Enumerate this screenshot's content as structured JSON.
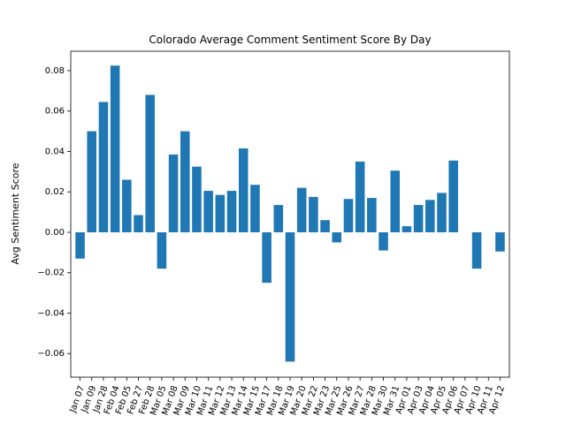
{
  "chart_data": {
    "type": "bar",
    "title": "Colorado Average Comment Sentiment Score By Day",
    "ylabel": "Avg Sentiment Score",
    "categories": [
      "Jan 07",
      "Jan 09",
      "Jan 28",
      "Feb 04",
      "Feb 05",
      "Feb 27",
      "Feb 28",
      "Mar 05",
      "Mar 08",
      "Mar 09",
      "Mar 10",
      "Mar 11",
      "Mar 12",
      "Mar 13",
      "Mar 14",
      "Mar 15",
      "Mar 17",
      "Mar 18",
      "Mar 19",
      "Mar 20",
      "Mar 22",
      "Mar 23",
      "Mar 25",
      "Mar 26",
      "Mar 27",
      "Mar 28",
      "Mar 30",
      "Mar 31",
      "Apr 01",
      "Apr 03",
      "Apr 04",
      "Apr 05",
      "Apr 06",
      "Apr 07",
      "Apr 10",
      "Apr 11",
      "Apr 12"
    ],
    "values": [
      -0.013,
      0.05,
      0.0645,
      0.0825,
      0.026,
      0.0085,
      0.068,
      -0.018,
      0.0385,
      0.05,
      0.0325,
      0.0205,
      0.0185,
      0.0205,
      0.0415,
      0.0235,
      -0.025,
      0.0135,
      -0.064,
      0.022,
      0.0175,
      0.006,
      -0.005,
      0.0165,
      0.035,
      0.017,
      -0.009,
      0.0305,
      0.003,
      0.0135,
      0.016,
      0.0195,
      0.0355,
      0,
      -0.018,
      0,
      -0.0095
    ],
    "color": "#1f77b4",
    "ylim": [
      -0.0717,
      0.0896
    ],
    "yticks": [
      {
        "value": -0.06,
        "label": "−0.06"
      },
      {
        "value": -0.04,
        "label": "−0.04"
      },
      {
        "value": -0.02,
        "label": "−0.02"
      },
      {
        "value": 0,
        "label": "0.00"
      },
      {
        "value": 0.02,
        "label": "0.02"
      },
      {
        "value": 0.04,
        "label": "0.04"
      },
      {
        "value": 0.06,
        "label": "0.06"
      },
      {
        "value": 0.08,
        "label": "0.08"
      }
    ]
  }
}
